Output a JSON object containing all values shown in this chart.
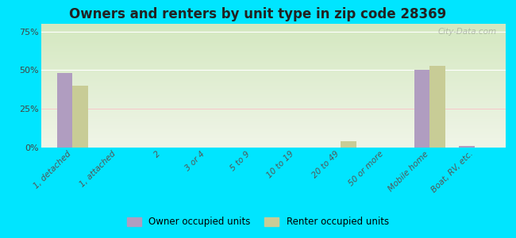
{
  "title": "Owners and renters by unit type in zip code 28369",
  "categories": [
    "1, detached",
    "1, attached",
    "2",
    "3 or 4",
    "5 to 9",
    "10 to 19",
    "20 to 49",
    "50 or more",
    "Mobile home",
    "Boat, RV, etc."
  ],
  "owner_values": [
    48,
    0,
    0,
    0,
    0,
    0,
    0,
    0,
    50,
    1
  ],
  "renter_values": [
    40,
    0,
    0,
    0,
    0,
    0,
    4,
    0,
    53,
    0
  ],
  "owner_color": "#b09dc0",
  "renter_color": "#c8cc96",
  "background_color": "#00e5ff",
  "ylabel_ticks": [
    "0%",
    "25%",
    "50%",
    "75%"
  ],
  "ytick_vals": [
    0,
    25,
    50,
    75
  ],
  "ylim": [
    0,
    80
  ],
  "bar_width": 0.35,
  "legend_owner": "Owner occupied units",
  "legend_renter": "Renter occupied units",
  "watermark": "City-Data.com"
}
